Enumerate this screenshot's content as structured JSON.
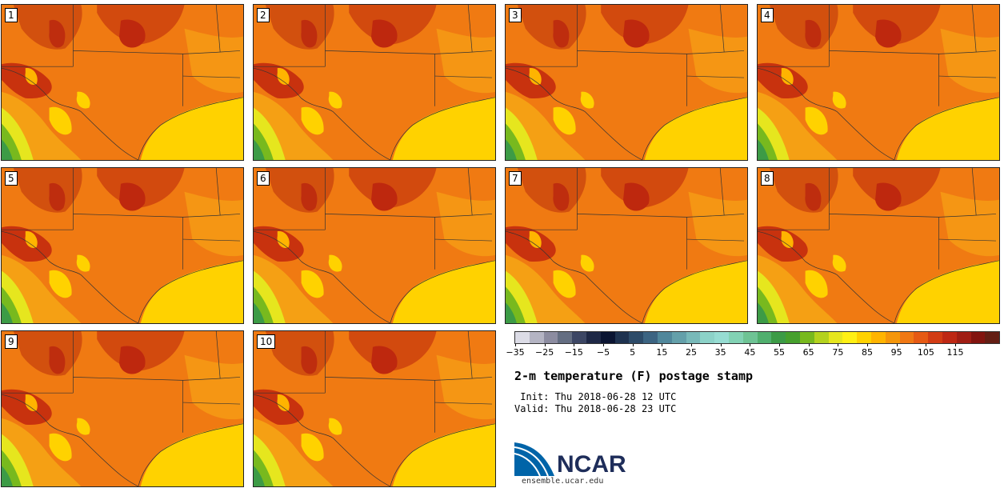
{
  "panels": [
    "1",
    "2",
    "3",
    "4",
    "5",
    "6",
    "7",
    "8",
    "9",
    "10"
  ],
  "colorbar": {
    "tick_labels": [
      "−35",
      "−25",
      "−15",
      "−5",
      "5",
      "15",
      "25",
      "35",
      "45",
      "55",
      "65",
      "75",
      "85",
      "95",
      "105",
      "115"
    ],
    "colors": [
      "#dcdce6",
      "#b4b4c3",
      "#8c8ca0",
      "#646e82",
      "#3c4664",
      "#1e2846",
      "#0a1432",
      "#1e3250",
      "#2d4b69",
      "#3c6482",
      "#50879b",
      "#64a0aa",
      "#78b9b9",
      "#8cd2c8",
      "#96dcd2",
      "#82d2b4",
      "#6ec394",
      "#50af6e",
      "#3c9b46",
      "#46a02d",
      "#78b91e",
      "#b4d21e",
      "#e6e61e",
      "#fff014",
      "#ffd200",
      "#ffb400",
      "#f5960a",
      "#f07814",
      "#e65a14",
      "#d23c14",
      "#be2814",
      "#a01e14",
      "#82140f",
      "#641e14"
    ]
  },
  "title": "2-m temperature (F) postage stamp",
  "init": " Init: Thu 2018-06-28 12 UTC",
  "valid": "Valid: Thu 2018-06-28 23 UTC",
  "logo": {
    "text": "NCAR",
    "colors": [
      "#0064a8",
      "#1e2d5a"
    ]
  },
  "site": "ensemble.ucar.edu"
}
